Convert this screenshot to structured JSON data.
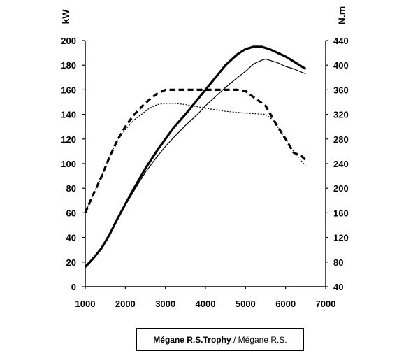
{
  "chart_data": {
    "type": "line",
    "title": "",
    "xlabel": "",
    "ylabel": "kW",
    "y2label": "N.m",
    "xlim": [
      1000,
      7000
    ],
    "ylim": [
      0,
      200
    ],
    "y2lim": [
      40,
      440
    ],
    "grid": false,
    "x_ticks": [
      "1000",
      "2000",
      "3000",
      "4000",
      "5000",
      "6000",
      "7000"
    ],
    "y_ticks": [
      "0",
      "20",
      "40",
      "60",
      "80",
      "100",
      "120",
      "140",
      "160",
      "180",
      "200"
    ],
    "y2_ticks": [
      "40",
      "80",
      "120",
      "160",
      "200",
      "240",
      "280",
      "320",
      "360",
      "400",
      "440"
    ],
    "legend": {
      "position": "bottom-center",
      "trophy_label": "Mégane R.S.Trophy",
      "separator": " / ",
      "rs_label": "Mégane R.S."
    },
    "series": [
      {
        "axis": "left",
        "style": "solid-thick",
        "x": [
          1000,
          1200,
          1400,
          1600,
          1800,
          2000,
          2200,
          2500,
          2800,
          3000,
          3200,
          3500,
          3800,
          4000,
          4200,
          4500,
          4800,
          5000,
          5200,
          5400,
          5500,
          5600,
          5800,
          6000,
          6200,
          6400,
          6500
        ],
        "values": [
          16,
          23,
          31,
          42,
          55,
          67,
          79,
          96,
          111,
          120,
          129,
          140,
          152,
          160,
          168,
          180,
          189,
          193,
          195,
          195,
          194,
          193,
          190,
          187,
          183,
          179,
          177
        ]
      },
      {
        "axis": "left",
        "style": "solid-thin",
        "x": [
          1000,
          1200,
          1400,
          1600,
          1800,
          2000,
          2200,
          2500,
          2800,
          3000,
          3200,
          3500,
          3800,
          4000,
          4200,
          4500,
          4800,
          5000,
          5200,
          5400,
          5500,
          5600,
          5800,
          6000,
          6200,
          6500
        ],
        "values": [
          16,
          23,
          31,
          42,
          55,
          66,
          77,
          93,
          106,
          114,
          121,
          131,
          140,
          147,
          153,
          162,
          170,
          175,
          181,
          184,
          185,
          184,
          182,
          179,
          177,
          173
        ]
      },
      {
        "axis": "right",
        "style": "dashed-thick",
        "x": [
          1000,
          1200,
          1400,
          1600,
          1800,
          2000,
          2200,
          2400,
          2600,
          2800,
          3000,
          3200,
          3500,
          4000,
          4500,
          4800,
          5000,
          5200,
          5500,
          5800,
          6000,
          6200,
          6400,
          6500
        ],
        "values": [
          160,
          190,
          218,
          250,
          278,
          300,
          318,
          332,
          344,
          354,
          360,
          360,
          360,
          360,
          360,
          360,
          358,
          348,
          334,
          300,
          280,
          258,
          252,
          246
        ]
      },
      {
        "axis": "right",
        "style": "dotted-thin",
        "x": [
          1000,
          1200,
          1400,
          1600,
          1800,
          2000,
          2200,
          2400,
          2600,
          2800,
          3000,
          3200,
          3500,
          4000,
          4500,
          5000,
          5500,
          5700,
          6000,
          6200,
          6400,
          6500
        ],
        "values": [
          160,
          190,
          218,
          250,
          278,
          295,
          310,
          320,
          330,
          336,
          338,
          338,
          336,
          330,
          325,
          322,
          320,
          310,
          280,
          260,
          244,
          236
        ]
      }
    ]
  }
}
